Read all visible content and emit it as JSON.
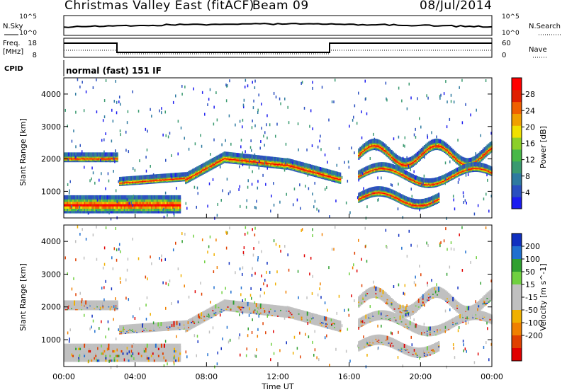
{
  "header": {
    "station": "Christmas Valley East (fitACF)",
    "beam": "Beam 09",
    "date": "08/Jul/2014"
  },
  "panel_labels": {
    "nsky": "N.Sky",
    "nsearch": "N.Search",
    "freq": "Freq.",
    "freq_unit": "[MHz]",
    "nave": "Nave",
    "cpid": "CPID",
    "cpid_value": "normal (fast) 151 IF",
    "noise_top": "10^5",
    "noise_bottom": "10^0",
    "freq_top": "18",
    "freq_bottom": "8",
    "nave_top": "60",
    "nave_bottom": "0"
  },
  "colors": {
    "power_scale": [
      "#1c1cf0",
      "#2a4fc0",
      "#2e7aa0",
      "#3a9a70",
      "#48b848",
      "#8ccf28",
      "#f0e000",
      "#f0a000",
      "#f06000",
      "#e02000",
      "#ff0000"
    ],
    "velocity_scale": [
      "#1030c0",
      "#2070d0",
      "#30a030",
      "#70d040",
      "#c0c0c0",
      "#c0c0c0",
      "#f0b000",
      "#f08000",
      "#e04000",
      "#e00000"
    ]
  },
  "chart_data": [
    {
      "type": "heatmap",
      "title": "Power",
      "ylabel": "Slant Range [km]",
      "xlabel": "",
      "colorbar_label": "Power [dB]",
      "colorbar_ticks": [
        "4",
        "8",
        "12",
        "16",
        "20",
        "24",
        "28"
      ],
      "colorbar_range": [
        0,
        32
      ],
      "ylim": [
        180,
        4500
      ],
      "y_ticks": [
        "1000",
        "2000",
        "3000",
        "4000"
      ],
      "x_range_hours": [
        0,
        24
      ]
    },
    {
      "type": "heatmap",
      "title": "Velocity",
      "ylabel": "Slant Range [km]",
      "xlabel": "Time UT",
      "colorbar_label": "Velocity [m s^-1]",
      "colorbar_ticks": [
        "200",
        "100",
        "50",
        "15",
        "-15",
        "-50",
        "-100",
        "-200"
      ],
      "ylim": [
        180,
        4500
      ],
      "y_ticks": [
        "1000",
        "2000",
        "3000",
        "4000"
      ],
      "x_ticks": [
        "00:00",
        "04:00",
        "08:00",
        "12:00",
        "16:00",
        "20:00",
        "00:00"
      ],
      "x_range_hours": [
        0,
        24
      ]
    }
  ]
}
